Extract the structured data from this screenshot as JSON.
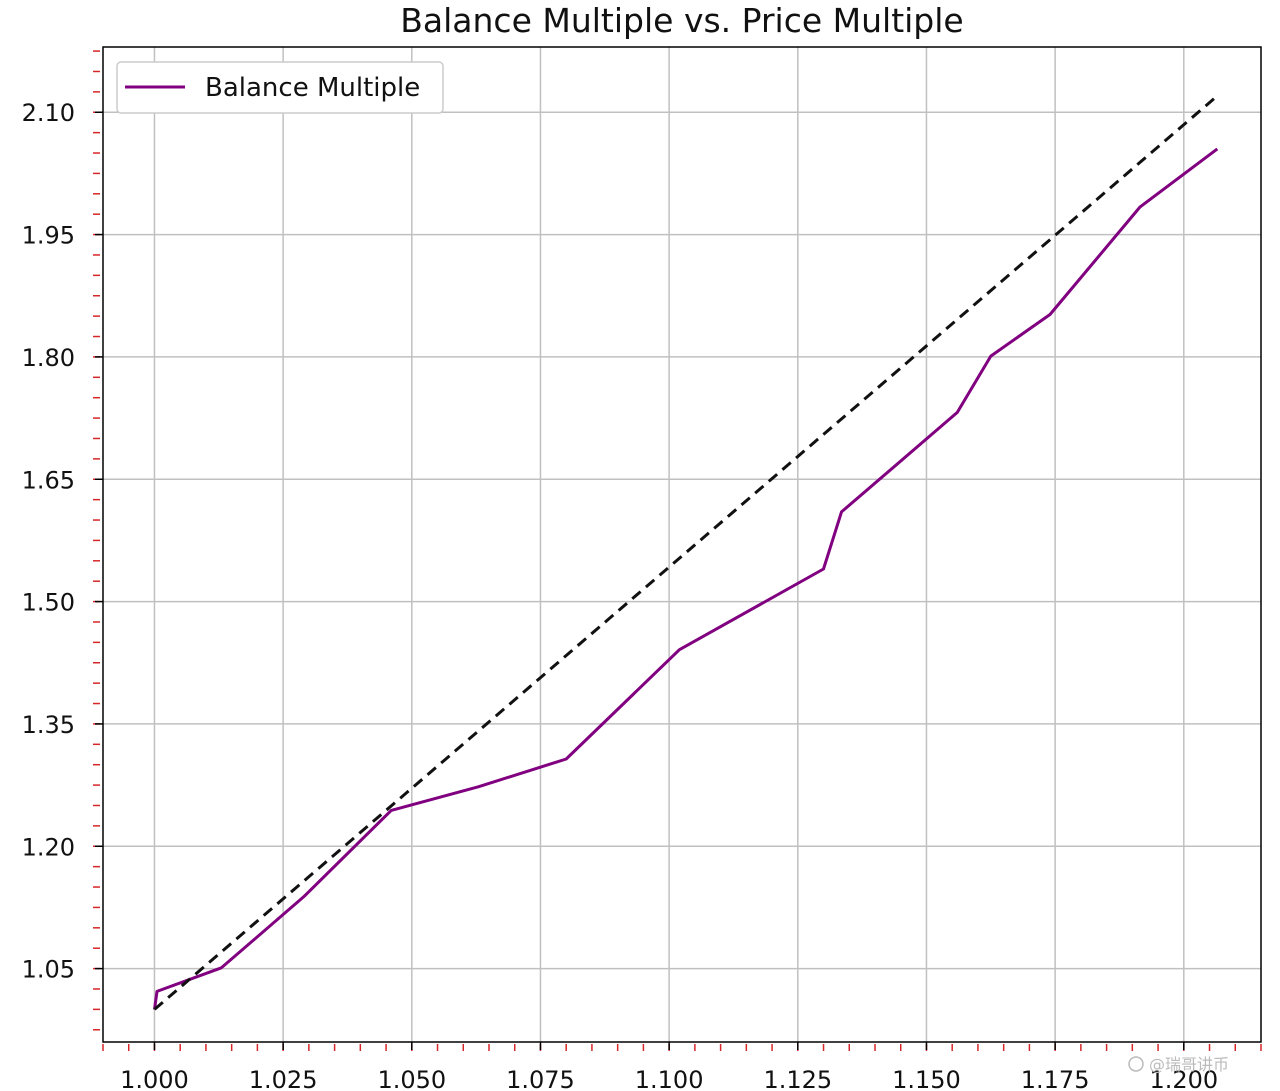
{
  "chart_data": {
    "type": "line",
    "title": "Balance Multiple vs. Price Multiple",
    "xlabel": "",
    "ylabel": "",
    "xlim": [
      0.99,
      1.215
    ],
    "ylim": [
      0.96,
      2.18
    ],
    "grid": true,
    "legend_position": "top-left",
    "x_ticks": [
      1.0,
      1.025,
      1.05,
      1.075,
      1.1,
      1.125,
      1.15,
      1.175,
      1.2
    ],
    "x_tick_labels": [
      "1.000",
      "1.025",
      "1.050",
      "1.075",
      "1.100",
      "1.125",
      "1.150",
      "1.175",
      "1.200"
    ],
    "y_ticks": [
      1.05,
      1.2,
      1.35,
      1.5,
      1.65,
      1.8,
      1.95,
      2.1
    ],
    "y_tick_labels": [
      "1.05",
      "1.20",
      "1.35",
      "1.50",
      "1.65",
      "1.80",
      "1.95",
      "2.10"
    ],
    "series": [
      {
        "name": "Balance Multiple",
        "color": "#800080",
        "style": "solid",
        "x": [
          1.0,
          1.0005,
          1.013,
          1.029,
          1.046,
          1.063,
          1.08,
          1.102,
          1.13,
          1.1335,
          1.156,
          1.1625,
          1.174,
          1.1915,
          1.2065
        ],
        "y": [
          1.0,
          1.022,
          1.051,
          1.138,
          1.244,
          1.273,
          1.307,
          1.441,
          1.54,
          1.61,
          1.732,
          1.801,
          1.852,
          1.984,
          2.055
        ]
      },
      {
        "color": "#111111",
        "style": "dashed",
        "x": [
          1.0,
          1.2065
        ],
        "y": [
          1.0,
          2.12
        ]
      }
    ]
  },
  "watermark": "@瑞哥讲币"
}
